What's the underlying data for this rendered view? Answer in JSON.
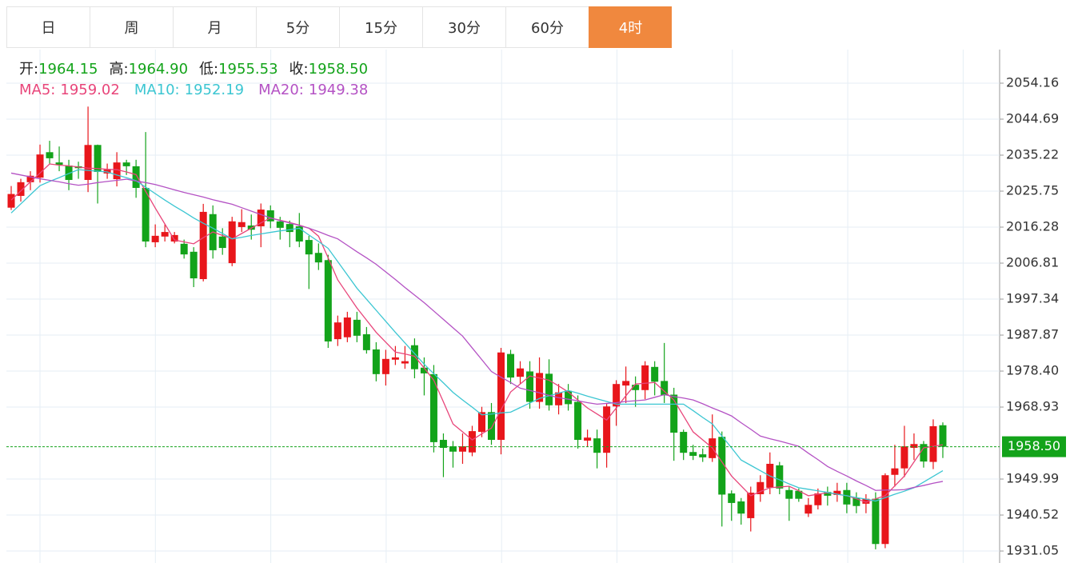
{
  "tabs": [
    "日",
    "周",
    "月",
    "5分",
    "15分",
    "30分",
    "60分",
    "4时"
  ],
  "active_tab": 7,
  "chart_data": {
    "type": "candlestick",
    "ohlc": [
      {
        "name": "开:",
        "value": "1964.15"
      },
      {
        "name": "高:",
        "value": "1964.90"
      },
      {
        "name": "低:",
        "value": "1955.53"
      },
      {
        "name": "收:",
        "value": "1958.50"
      }
    ],
    "up_color": "#e8161b",
    "down_color": "#13a31a",
    "ylim": [
      1927.9,
      2063.0
    ],
    "yticks": [
      2054.16,
      2044.69,
      2035.22,
      2025.75,
      2016.28,
      2006.81,
      1997.34,
      1987.87,
      {
        "value": 1978.4,
        "label": "1978.40"
      },
      1968.93,
      1949.99,
      1940.52,
      1931.05
    ],
    "grid": true,
    "last_price": {
      "value": 1958.5,
      "label": "1958.50"
    },
    "categories": [
      null,
      null,
      null,
      null,
      null,
      null,
      null,
      null,
      null,
      null,
      null,
      null,
      null,
      null,
      null,
      null,
      null,
      null,
      null,
      null,
      null,
      null,
      null,
      null,
      null,
      null,
      null,
      null,
      null,
      null,
      null,
      null,
      null,
      null,
      null,
      null,
      null,
      null,
      null,
      null,
      null,
      null,
      null,
      null,
      null,
      null,
      null,
      null,
      null,
      null,
      null,
      null,
      null,
      null,
      null,
      null,
      null,
      null,
      null,
      null,
      null,
      null,
      null,
      null,
      null,
      null,
      null,
      null,
      null,
      null,
      null,
      null,
      null,
      null,
      null,
      null,
      null,
      null,
      null,
      null,
      null,
      null,
      null,
      null,
      null,
      null,
      null,
      null,
      null,
      null,
      null,
      null,
      null,
      null,
      null,
      null,
      null,
      null
    ],
    "open": [
      2021.4,
      2024.5,
      2028.1,
      2029.3,
      2036.0,
      2033.3,
      2032.5,
      2032.3,
      2028.7,
      2037.9,
      2030.4,
      2028.9,
      2033.3,
      2032.3,
      2026.6,
      2012.3,
      2013.8,
      2012.5,
      2011.9,
      2009.8,
      2002.6,
      2019.7,
      2013.8,
      2006.8,
      2016.3,
      2016.7,
      2016.5,
      2020.7,
      2017.8,
      2017.1,
      2016.5,
      2012.9,
      2009.5,
      2007.6,
      1986.8,
      1987.3,
      1991.9,
      1988.1,
      1984.1,
      1977.6,
      1981.4,
      1980.4,
      1985.2,
      1979.3,
      1977.6,
      1960.3,
      1958.6,
      1957.2,
      1957.0,
      1962.4,
      1967.6,
      1960.3,
      1982.9,
      1976.9,
      1978.3,
      1970.3,
      1977.7,
      1969.4,
      1973.2,
      1970.3,
      1960.1,
      1960.7,
      1956.9,
      1969.1,
      1974.6,
      1974.8,
      1973.4,
      1979.5,
      1975.8,
      1972.2,
      1962.4,
      1957.1,
      1956.5,
      1955.5,
      1961.1,
      1946.2,
      1944.1,
      1939.7,
      1946.0,
      1947.7,
      1953.6,
      1947.1,
      1946.9,
      1940.9,
      1943.1,
      1946.6,
      1945.8,
      1947.1,
      1945.0,
      1943.5,
      1944.8,
      1932.9,
      1951.1,
      1952.8,
      1958.2,
      1959.2,
      1954.5,
      1964.15
    ],
    "high": [
      2027.1,
      2029.0,
      2031,
      2038,
      2039,
      2037.5,
      2034,
      2033.5,
      2048.0,
      2038,
      2033,
      2036,
      2034,
      2034,
      2041.3,
      2017,
      2017,
      2015,
      2013,
      2011,
      2022.4,
      2022,
      2016,
      2019,
      2021,
      2019.6,
      2022.5,
      2022,
      2019,
      2018,
      2020,
      2014,
      2012,
      2009,
      1993,
      1994,
      1994,
      1990,
      1986,
      1984,
      1985,
      1985,
      1987,
      1982,
      1980,
      1962,
      1960,
      1962,
      1964,
      1969,
      1970,
      1984.5,
      1984,
      1981,
      1981,
      1982,
      1981.5,
      1975,
      1975,
      1972,
      1963,
      1963,
      1970,
      1976,
      1979.6,
      1977,
      1981,
      1981,
      1985.8,
      1974,
      1963,
      1959,
      1958,
      1967,
      1962.5,
      1947,
      1945,
      1948,
      1951,
      1957,
      1954.5,
      1948,
      1947.5,
      1945,
      1947.5,
      1948,
      1949,
      1949,
      1946.5,
      1946,
      1946.5,
      1951.5,
      1959,
      1964,
      1962,
      1960,
      1965.7,
      1964.9
    ],
    "low": [
      2020.8,
      2023,
      2026,
      2028,
      2033,
      2031,
      2026,
      2029,
      2025.5,
      2022.5,
      2029,
      2027,
      2030,
      2024,
      2011,
      2011,
      2012.5,
      2012,
      2008,
      2000.5,
      2002,
      2008,
      2009,
      2006,
      2015,
      2013,
      2011,
      2016,
      2013,
      2011,
      2011,
      2000,
      2005,
      1984.5,
      1985,
      1986,
      1986,
      1983,
      1975.7,
      1974.6,
      1980,
      1979,
      1976.5,
      1972,
      1957,
      1950.5,
      1953,
      1954,
      1956,
      1961,
      1959,
      1956.5,
      1975,
      1975,
      1968.5,
      1968.5,
      1968,
      1967,
      1968,
      1958,
      1958.5,
      1952.8,
      1953,
      1964,
      1970,
      1969,
      1971,
      1972,
      1970,
      1954.8,
      1955,
      1955,
      1954.5,
      1954.5,
      1937.5,
      1939,
      1938,
      1936.2,
      1944,
      1946,
      1946,
      1939,
      1944,
      1940,
      1942,
      1943,
      1944,
      1941,
      1941,
      1941,
      1931.5,
      1931.8,
      1948,
      1950.5,
      1955,
      1953,
      1952.6,
      1955.53
    ],
    "close": [
      2025.0,
      2028.1,
      2029.8,
      2035.4,
      2034.4,
      2032.7,
      2028.7,
      2031.8,
      2037.9,
      2030.8,
      2031.4,
      2033.3,
      2032.3,
      2026.6,
      2012.5,
      2014.0,
      2015.0,
      2014.2,
      2009.1,
      2002.8,
      2020.3,
      2010.2,
      2010.8,
      2017.8,
      2017.6,
      2015.6,
      2020.9,
      2017.8,
      2016.1,
      2015.0,
      2012.5,
      2009.1,
      2007.0,
      1986.2,
      1991.2,
      1992.5,
      1987.7,
      1983.9,
      1977.6,
      1981.6,
      1982.0,
      1981.0,
      1978.9,
      1977.8,
      1959.7,
      1958.2,
      1957.2,
      1958.6,
      1962.6,
      1967.6,
      1960.3,
      1983.3,
      1976.7,
      1979.1,
      1970.3,
      1977.9,
      1969.4,
      1972.8,
      1969.7,
      1960.3,
      1960.9,
      1956.9,
      1969.1,
      1975.0,
      1975.8,
      1973.4,
      1979.9,
      1975.6,
      1972.0,
      1962.2,
      1956.9,
      1956.1,
      1955.7,
      1960.7,
      1945.9,
      1943.7,
      1940.9,
      1946.4,
      1949.2,
      1954.0,
      1947.5,
      1944.8,
      1944.8,
      1943.2,
      1946.2,
      1945.6,
      1946.9,
      1943.3,
      1942.9,
      1944.8,
      1932.9,
      1951.0,
      1952.8,
      1958.6,
      1959.2,
      1954.6,
      1963.9,
      1958.5
    ],
    "series": [
      {
        "name": "MA5:",
        "value": "1959.02",
        "color": "#e8457a",
        "values": [
          2023.4,
          2025.8,
          2028.2,
          2030.5,
          2032.9,
          2032.6,
          2032.4,
          2032.1,
          2031.8,
          2031.7,
          2031.5,
          2031.4,
          2030.8,
          2030.1,
          2025.7,
          2021.3,
          2017.1,
          2012.9,
          2012.4,
          2011.9,
          2013.5,
          2015.0,
          2014.1,
          2013.2,
          2014.6,
          2016.0,
          2017.4,
          2018.7,
          2018.1,
          2017.5,
          2016.8,
          2016.0,
          2013.9,
          2008.2,
          2002.4,
          1998.7,
          1995.0,
          1991.8,
          1988.6,
          1986.0,
          1983.4,
          1982.9,
          1982.3,
          1979.2,
          1976.0,
          1970.3,
          1964.5,
          1962.4,
          1960.3,
          1961.9,
          1963.4,
          1968.2,
          1972.9,
          1975.0,
          1977.1,
          1976.6,
          1976.0,
          1974.5,
          1972.9,
          1970.8,
          1968.7,
          1967.1,
          1965.5,
          1968.7,
          1971.9,
          1975.0,
          1975.2,
          1975.4,
          1973.1,
          1970.8,
          1966.6,
          1962.4,
          1960.3,
          1958.2,
          1954.5,
          1950.8,
          1948.2,
          1945.6,
          1946.7,
          1947.7,
          1947.9,
          1948.1,
          1946.9,
          1945.6,
          1946.0,
          1946.4,
          1946.0,
          1945.6,
          1944.8,
          1943.9,
          1944.8,
          1945.6,
          1948.2,
          1950.8,
          1954.5,
          1958.2,
          1958.6,
          1959.02
        ]
      },
      {
        "name": "MA10:",
        "value": "1952.19",
        "color": "#3cc6d2",
        "values": [
          2020.0,
          2022.4,
          2024.8,
          2027.2,
          2028.3,
          2029.3,
          2030.4,
          2031.4,
          2031.2,
          2031.0,
          2030.8,
          2030.0,
          2029.3,
          2028.5,
          2026.8,
          2025.1,
          2023.4,
          2021.8,
          2020.3,
          2018.7,
          2017.3,
          2016.0,
          2014.6,
          2013.2,
          2013.6,
          2014.1,
          2014.5,
          2014.9,
          2015.3,
          2015.6,
          2016.0,
          2014.2,
          2012.5,
          2010.7,
          2007.2,
          2003.7,
          2000.2,
          1997.3,
          1994.4,
          1991.5,
          1988.6,
          1985.8,
          1983.0,
          1980.2,
          1977.7,
          1975.3,
          1972.8,
          1970.8,
          1968.9,
          1966.9,
          1967.1,
          1967.4,
          1967.6,
          1968.8,
          1970.0,
          1971.2,
          1971.9,
          1972.6,
          1973.3,
          1972.6,
          1971.8,
          1971.1,
          1970.4,
          1969.7,
          1969.7,
          1969.7,
          1969.7,
          1969.7,
          1969.7,
          1969.7,
          1969.7,
          1968.0,
          1966.2,
          1964.5,
          1961.3,
          1958.2,
          1955.0,
          1953.6,
          1952.2,
          1950.8,
          1949.8,
          1948.7,
          1947.7,
          1947.3,
          1946.9,
          1946.5,
          1946.0,
          1945.6,
          1945.1,
          1944.7,
          1944.2,
          1945.1,
          1946.0,
          1946.8,
          1947.7,
          1949.2,
          1950.7,
          1952.19
        ]
      },
      {
        "name": "MA20:",
        "value": "1949.38",
        "color": "#b452c4",
        "values": [
          2030.5,
          2030.0,
          2029.5,
          2029.0,
          2028.6,
          2028.2,
          2027.7,
          2027.3,
          2027.6,
          2028.0,
          2028.3,
          2028.6,
          2028.9,
          2028.4,
          2028.0,
          2027.5,
          2026.8,
          2026.1,
          2025.4,
          2024.8,
          2024.2,
          2023.5,
          2022.9,
          2022.3,
          2021.4,
          2020.5,
          2019.6,
          2018.7,
          2018.0,
          2017.4,
          2016.7,
          2016.0,
          2015.1,
          2014.1,
          2013.2,
          2011.5,
          2009.8,
          2008.2,
          2006.5,
          2004.5,
          2002.5,
          2000.4,
          1998.4,
          1996.4,
          1994.2,
          1992.0,
          1989.8,
          1987.6,
          1984.5,
          1981.4,
          1978.3,
          1976.8,
          1975.4,
          1973.9,
          1973.3,
          1972.7,
          1972.0,
          1971.4,
          1971.0,
          1970.6,
          1970.1,
          1969.7,
          1969.9,
          1970.1,
          1970.4,
          1970.6,
          1970.8,
          1971.5,
          1972.2,
          1971.7,
          1971.3,
          1970.8,
          1969.8,
          1968.7,
          1967.7,
          1966.6,
          1964.8,
          1963.1,
          1961.3,
          1960.6,
          1960.0,
          1959.3,
          1958.6,
          1956.8,
          1955.1,
          1953.3,
          1952.0,
          1950.8,
          1949.5,
          1948.3,
          1947.0,
          1947.1,
          1947.1,
          1947.2,
          1947.8,
          1948.3,
          1948.9,
          1949.38
        ]
      }
    ]
  }
}
